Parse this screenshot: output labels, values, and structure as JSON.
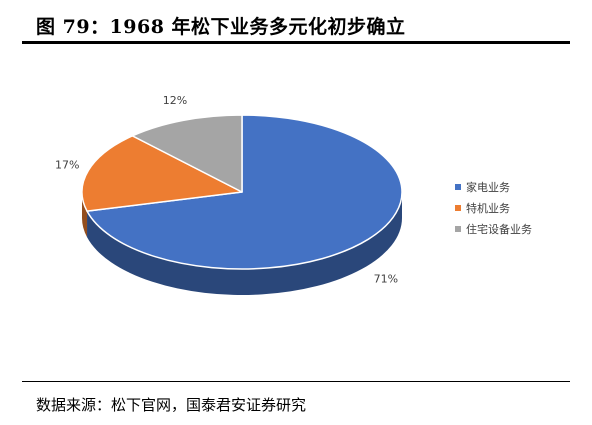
{
  "header": {
    "title": "图 79：1968 年松下业务多元化初步确立"
  },
  "footer": {
    "source": "数据来源：松下官网，国泰君安证券研究"
  },
  "colors": {
    "家电业务": "#4472C4",
    "特机业务": "#ED7D31",
    "住宅设备业务": "#A5A5A5"
  },
  "chart_data": {
    "type": "pie",
    "style": "3d",
    "title": "",
    "legend_position": "right",
    "series": [
      {
        "name": "家电业务",
        "value": 71,
        "label": "71%"
      },
      {
        "name": "特机业务",
        "value": 17,
        "label": "17%"
      },
      {
        "name": "住宅设备业务",
        "value": 12,
        "label": "12%"
      }
    ]
  }
}
